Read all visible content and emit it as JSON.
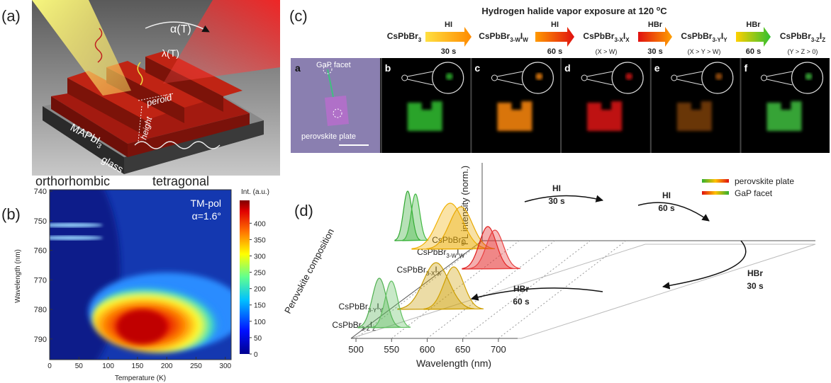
{
  "panels": {
    "a": {
      "label": "(a)",
      "alpha": "α(T)",
      "lambda": "λ(T)",
      "period": "peroid",
      "height": "height",
      "material": [
        "MAPbI",
        "3"
      ],
      "substrate": "glass"
    },
    "b": {
      "label": "(b)",
      "phase_left": "orthorhombic",
      "phase_right": "tetragonal",
      "polarization": "TM-pol",
      "angle": "α=1.6°",
      "colorbar_title": "Int. (a.u.)",
      "ylabel": "Wavelength (nm)",
      "xlabel": "Temperature (K)",
      "xlim": [
        0,
        310
      ],
      "xticks": [
        0,
        50,
        100,
        150,
        200,
        250,
        300
      ],
      "ylim": [
        739.5,
        797
      ],
      "yticks": [
        740,
        750,
        760,
        770,
        780,
        790
      ],
      "clim": [
        0,
        470
      ],
      "cticks": [
        0,
        50,
        100,
        150,
        200,
        250,
        300,
        350,
        400
      ]
    },
    "c": {
      "label": "(c)",
      "title": [
        "Hydrogen halide vapor exposure at 120 ",
        "o",
        "C"
      ],
      "steps": [
        {
          "formula": [
            "CsPbBr",
            "3"
          ]
        },
        {
          "formula": [
            "CsPbBr",
            "3-W",
            "I",
            "W"
          ]
        },
        {
          "formula": [
            "CsPbBr",
            "3-X",
            "I",
            "X"
          ],
          "condition": "(X > W)"
        },
        {
          "formula": [
            "CsPbBr",
            "3-Y",
            "I",
            "Y"
          ],
          "condition": "(X > Y > W)"
        },
        {
          "formula": [
            "CsPbBr",
            "3-Z",
            "I",
            "Z"
          ],
          "condition": "(Y > Z > 0)"
        }
      ],
      "reagents": [
        {
          "gas": "HI",
          "time": "30 s"
        },
        {
          "gas": "HI",
          "time": "60 s"
        },
        {
          "gas": "HBr",
          "time": "30 s"
        },
        {
          "gas": "HBr",
          "time": "60 s"
        }
      ],
      "images": [
        "a",
        "b",
        "c",
        "d",
        "e",
        "f"
      ],
      "facet": "GaP facet",
      "plate": "perovskite plate"
    },
    "d": {
      "label": "(d)",
      "ylabel": "PL intensity (norm.)",
      "zlabel": "Perovskite composition",
      "xlabel": "Wavelength (nm)",
      "xlim": [
        490,
        720
      ],
      "xticks": [
        500,
        550,
        600,
        650,
        700
      ],
      "legend": [
        "perovskite plate",
        "GaP facet"
      ],
      "categories": [
        [
          "CsPbBr",
          "3"
        ],
        [
          "CsPbBr",
          "3-W",
          "I",
          "W"
        ],
        [
          "CsPbBr",
          "3-X",
          "I",
          "X"
        ],
        [
          "CsPbBr",
          "3-Y",
          "I",
          "Y"
        ],
        [
          "CsPbBr",
          "3-Z",
          "I",
          "Z"
        ]
      ],
      "arrows": [
        {
          "gas": "HI",
          "time": "30 s"
        },
        {
          "gas": "HI",
          "time": "60 s"
        },
        {
          "gas": "HBr",
          "time": "30 s"
        },
        {
          "gas": "HBr",
          "time": "60 s"
        }
      ]
    }
  }
}
